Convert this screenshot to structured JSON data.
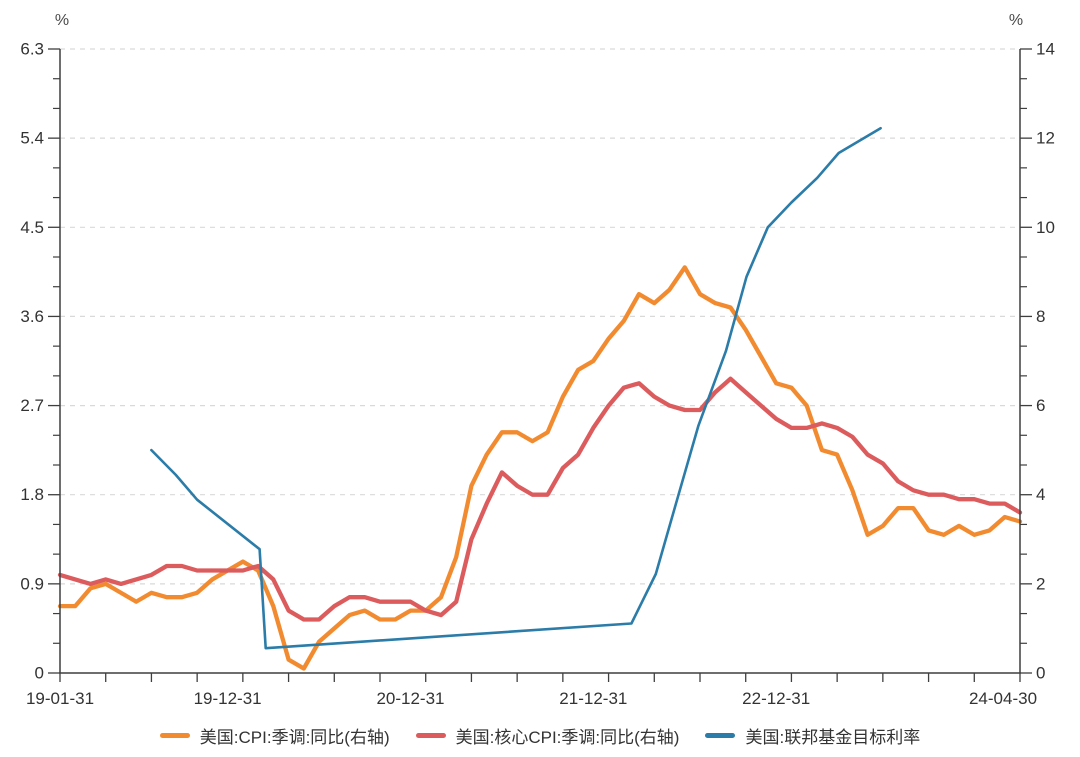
{
  "colors": {
    "background": "#ffffff",
    "axis": "#3f3f3f",
    "tick_text": "#333333",
    "unit_text": "#4a4a4a",
    "grid": "#d9d9d9",
    "cpi_orange": "#F28B30",
    "core_cpi_red": "#DC5C5E",
    "fed_rate_blue": "#2B7CA8"
  },
  "chart_data": {
    "type": "line",
    "title": "",
    "unit_label_left": "%",
    "unit_label_right": "%",
    "grid": "dashed horizontal lines at every major tick",
    "legend_position": "bottom-center",
    "left_axis": {
      "min": 0,
      "max": 6.3,
      "major_step": 0.9,
      "minor_step": 0.3,
      "tick_labels": [
        "0",
        "0.9",
        "1.8",
        "2.7",
        "3.6",
        "4.5",
        "5.4",
        "6.3"
      ]
    },
    "right_axis": {
      "min": 0,
      "max": 14,
      "major_step": 2,
      "minor_step": 0.6667,
      "tick_labels": [
        "0",
        "2",
        "4",
        "6",
        "8",
        "10",
        "12",
        "14"
      ]
    },
    "x_axis": {
      "months_total": 63,
      "start_month": "2019-01",
      "end_month": "2024-04",
      "minor_tick_every_months": 3,
      "tick_labels": [
        {
          "label": "19-01-31",
          "month": 0
        },
        {
          "label": "19-12-31",
          "month": 11
        },
        {
          "label": "20-12-31",
          "month": 23
        },
        {
          "label": "21-12-31",
          "month": 35
        },
        {
          "label": "22-12-31",
          "month": 47
        },
        {
          "label": "24-04-30",
          "month": 63,
          "x": 1003
        }
      ]
    },
    "series": [
      {
        "name": "美国:CPI:季调:同比(右轴)",
        "axis": "right",
        "color": "#F28B30",
        "width": 4.3,
        "x_start_month": 0,
        "monthly_values": [
          1.5,
          1.5,
          1.9,
          2.0,
          1.8,
          1.6,
          1.8,
          1.7,
          1.7,
          1.8,
          2.1,
          2.3,
          2.5,
          2.3,
          1.5,
          0.3,
          0.1,
          0.7,
          1.0,
          1.3,
          1.4,
          1.2,
          1.2,
          1.4,
          1.4,
          1.7,
          2.6,
          4.2,
          4.9,
          5.4,
          5.4,
          5.2,
          5.4,
          6.2,
          6.8,
          7.0,
          7.5,
          7.9,
          8.5,
          8.3,
          8.6,
          9.1,
          8.5,
          8.3,
          8.2,
          7.7,
          7.1,
          6.5,
          6.4,
          6.0,
          5.0,
          4.9,
          4.1,
          3.1,
          3.3,
          3.7,
          3.7,
          3.2,
          3.1,
          3.3,
          3.1,
          3.2,
          3.5,
          3.4
        ]
      },
      {
        "name": "美国:核心CPI:季调:同比(右轴)",
        "axis": "right",
        "color": "#DC5C5E",
        "width": 4.3,
        "x_start_month": 0,
        "monthly_values": [
          2.2,
          2.1,
          2.0,
          2.1,
          2.0,
          2.1,
          2.2,
          2.4,
          2.4,
          2.3,
          2.3,
          2.3,
          2.3,
          2.4,
          2.1,
          1.4,
          1.2,
          1.2,
          1.5,
          1.7,
          1.7,
          1.6,
          1.6,
          1.6,
          1.4,
          1.3,
          1.6,
          3.0,
          3.8,
          4.5,
          4.2,
          4.0,
          4.0,
          4.6,
          4.9,
          5.5,
          6.0,
          6.4,
          6.5,
          6.2,
          6.0,
          5.9,
          5.9,
          6.3,
          6.6,
          6.3,
          6.0,
          5.7,
          5.5,
          5.5,
          5.6,
          5.5,
          5.3,
          4.9,
          4.7,
          4.3,
          4.1,
          4.0,
          4.0,
          3.9,
          3.9,
          3.8,
          3.8,
          3.6
        ]
      },
      {
        "name": "美国:联邦基金目标利率",
        "axis": "left",
        "color": "#2B7CA8",
        "width": 2.6,
        "points": [
          [
            6.0,
            2.25
          ],
          [
            7.6,
            2.0
          ],
          [
            9.0,
            1.75
          ],
          [
            13.1,
            1.25
          ],
          [
            13.5,
            0.25
          ],
          [
            37.5,
            0.5
          ],
          [
            39.1,
            1.0
          ],
          [
            40.5,
            1.75
          ],
          [
            41.9,
            2.5
          ],
          [
            43.7,
            3.25
          ],
          [
            45.05,
            4.0
          ],
          [
            46.45,
            4.5
          ],
          [
            48.0,
            4.75
          ],
          [
            49.7,
            5.0
          ],
          [
            51.1,
            5.25
          ],
          [
            53.85,
            5.5
          ]
        ]
      }
    ]
  }
}
